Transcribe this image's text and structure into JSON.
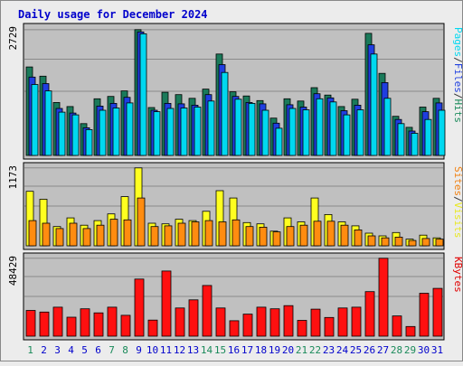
{
  "chart_data": {
    "type": "bar",
    "title": "Daily usage for December 2024",
    "x": [
      "1",
      "2",
      "3",
      "4",
      "5",
      "6",
      "7",
      "8",
      "9",
      "10",
      "11",
      "12",
      "13",
      "14",
      "15",
      "16",
      "17",
      "18",
      "19",
      "20",
      "21",
      "22",
      "23",
      "24",
      "25",
      "26",
      "27",
      "28",
      "29",
      "30",
      "31"
    ],
    "weekend_days": [
      "1",
      "7",
      "8",
      "14",
      "15",
      "21",
      "22",
      "28",
      "29"
    ],
    "panels": [
      {
        "id": "hits",
        "ymax_label": "2729",
        "ymax": 2729,
        "ylabel_parts": [
          {
            "text": "Pages",
            "color": "#00d8f0"
          },
          {
            "text": "/",
            "color": "#333333"
          },
          {
            "text": "Files",
            "color": "#2040e0"
          },
          {
            "text": "/",
            "color": "#333333"
          },
          {
            "text": "Hits",
            "color": "#1a8a5a"
          }
        ],
        "series": [
          {
            "name": "Hits",
            "color": "#1a7a5a",
            "values": [
              1920,
              1720,
              1150,
              1060,
              690,
              1230,
              1280,
              1400,
              2730,
              1040,
              1370,
              1320,
              1240,
              1440,
              2200,
              1380,
              1290,
              1190,
              810,
              1230,
              1180,
              1470,
              1310,
              1060,
              1220,
              2650,
              1780,
              850,
              610,
              1050,
              1240
            ]
          },
          {
            "name": "Files",
            "color": "#1f3ee0",
            "values": [
              1700,
              1560,
              1020,
              920,
              600,
              1070,
              1130,
              1260,
              2680,
              980,
              1130,
              1120,
              1090,
              1320,
              1970,
              1280,
              1150,
              1120,
              700,
              1100,
              1050,
              1340,
              1250,
              970,
              1090,
              2400,
              1580,
              780,
              530,
              950,
              1140
            ]
          },
          {
            "name": "Pages",
            "color": "#00d8f0",
            "values": [
              1540,
              1400,
              940,
              880,
              560,
              980,
              1030,
              1140,
              2640,
              950,
              1020,
              1030,
              1050,
              1180,
              1800,
              1220,
              1130,
              980,
              590,
              1020,
              990,
              1230,
              1160,
              880,
              990,
              2200,
              1240,
              690,
              480,
              780,
              980
            ]
          }
        ]
      },
      {
        "id": "visits",
        "ymax_label": "1173",
        "ymax": 1173,
        "ylabel_parts": [
          {
            "text": "Sites",
            "color": "#f08010"
          },
          {
            "text": "/",
            "color": "#333333"
          },
          {
            "text": "Visits",
            "color": "#e8e820"
          }
        ],
        "series": [
          {
            "name": "Visits",
            "color": "#ffff20",
            "values": [
              820,
              700,
              290,
              420,
              310,
              380,
              480,
              740,
              1173,
              340,
              330,
              400,
              380,
              520,
              830,
              720,
              350,
              330,
              220,
              420,
              360,
              720,
              470,
              360,
              300,
              190,
              150,
              200,
              100,
              160,
              120
            ]
          },
          {
            "name": "Sites",
            "color": "#ff8c10",
            "values": [
              380,
              340,
              260,
              340,
              260,
              310,
              400,
              390,
              720,
              290,
              300,
              340,
              360,
              380,
              360,
              390,
              290,
              280,
              210,
              290,
              310,
              370,
              370,
              310,
              240,
              150,
              120,
              130,
              80,
              110,
              100
            ]
          }
        ]
      },
      {
        "id": "kbytes",
        "ymax_label": "48429",
        "ymax": 48429,
        "ylabel_parts": [
          {
            "text": "KBytes",
            "color": "#e00000"
          }
        ],
        "series": [
          {
            "name": "KBytes",
            "color": "#ff1010",
            "values": [
              16000,
              15000,
              18000,
              11800,
              17000,
              14500,
              18000,
              13000,
              35500,
              10000,
              40500,
              17500,
              22600,
              31500,
              17500,
              9600,
              13700,
              18000,
              17000,
              19000,
              9800,
              16800,
              11600,
              17500,
              18000,
              27700,
              48429,
              12600,
              6000,
              26700,
              29700
            ]
          }
        ]
      }
    ]
  },
  "colors": {
    "background": "#c0c0c0",
    "title": "#0000cc",
    "weekday_label": "#0000cc",
    "weekend_label": "#1a8a5a"
  }
}
